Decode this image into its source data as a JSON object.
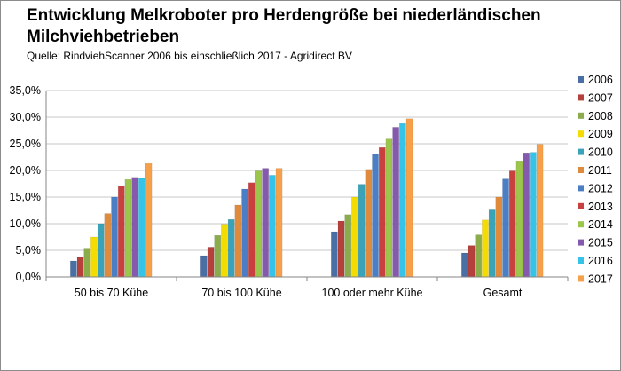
{
  "title": "Entwicklung Melkroboter pro Herdengröße bei niederländischen Milchviehbetrieben",
  "subtitle": "Quelle: RindviehScanner 2006 bis einschließlich  2017 - Agridirect BV",
  "chart_data": {
    "type": "bar",
    "title": "Entwicklung Melkroboter pro Herdengröße bei niederländischen Milchviehbetrieben",
    "subtitle": "Quelle: RindviehScanner 2006 bis einschließlich  2017 - Agridirect BV",
    "categories": [
      "50 bis 70 Kühe",
      "70 bis 100 Kühe",
      "100 oder mehr Kühe",
      "Gesamt"
    ],
    "ylim": [
      0,
      35
    ],
    "yticks": [
      0,
      5,
      10,
      15,
      20,
      25,
      30,
      35
    ],
    "ytick_labels": [
      "0,0%",
      "5,0%",
      "10,0%",
      "15,0%",
      "20,0%",
      "25,0%",
      "30,0%",
      "35,0%"
    ],
    "grid": true,
    "legend_position": "right",
    "series": [
      {
        "name": "2006",
        "color": "#4a6fa5",
        "values": [
          3.0,
          4.0,
          8.5,
          4.5
        ]
      },
      {
        "name": "2007",
        "color": "#b5403c",
        "values": [
          3.7,
          5.6,
          10.5,
          5.9
        ]
      },
      {
        "name": "2008",
        "color": "#8aac4a",
        "values": [
          5.4,
          7.8,
          11.7,
          7.9
        ]
      },
      {
        "name": "2009",
        "color": "#f5dc00",
        "values": [
          7.5,
          9.9,
          15.0,
          10.7
        ]
      },
      {
        "name": "2010",
        "color": "#3aa3b8",
        "values": [
          10.0,
          10.8,
          17.4,
          12.6
        ]
      },
      {
        "name": "2011",
        "color": "#e08a3c",
        "values": [
          11.9,
          13.5,
          20.2,
          15.0
        ]
      },
      {
        "name": "2012",
        "color": "#4a7fc6",
        "values": [
          15.0,
          16.5,
          23.0,
          18.4
        ]
      },
      {
        "name": "2013",
        "color": "#c9413f",
        "values": [
          17.1,
          17.7,
          24.3,
          19.9
        ]
      },
      {
        "name": "2014",
        "color": "#9cc54c",
        "values": [
          18.3,
          19.9,
          25.9,
          21.8
        ]
      },
      {
        "name": "2015",
        "color": "#8559ae",
        "values": [
          18.7,
          20.4,
          28.1,
          23.3
        ]
      },
      {
        "name": "2016",
        "color": "#36c3e8",
        "values": [
          18.5,
          19.1,
          28.8,
          23.4
        ]
      },
      {
        "name": "2017",
        "color": "#f7a04a",
        "values": [
          21.3,
          20.4,
          29.7,
          24.9
        ]
      }
    ]
  }
}
